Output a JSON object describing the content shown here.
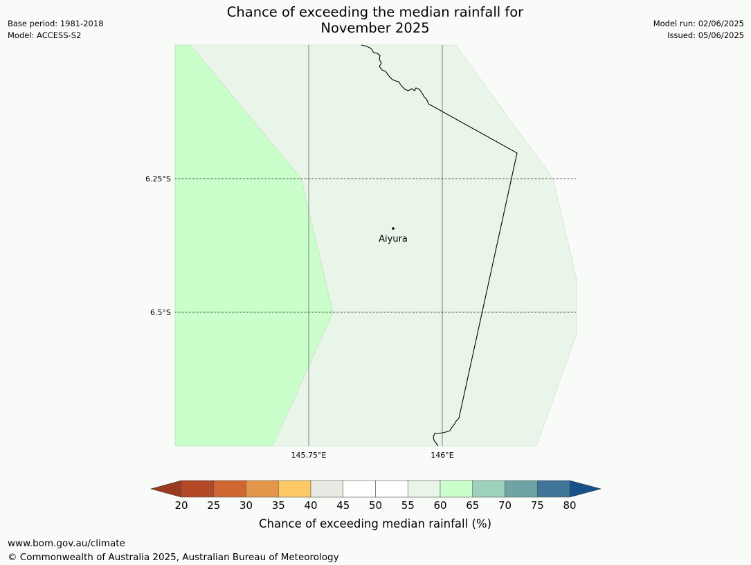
{
  "title": {
    "line1": "Chance of exceeding the median rainfall for",
    "line2": "November 2025"
  },
  "meta_left": {
    "base_period": "Base period: 1981-2018",
    "model": "Model: ACCESS-S2"
  },
  "meta_right": {
    "model_run": "Model run: 02/06/2025",
    "issued": "Issued: 05/06/2025"
  },
  "map": {
    "place_label": "Aiyura",
    "lat_labels": [
      "6.25°S",
      "6.5°S"
    ],
    "lon_labels": [
      "145.75°E",
      "146°E"
    ],
    "region_colors": {
      "band_60_65": "#caffcb",
      "band_55_60": "#eaf5ea"
    }
  },
  "colorbar": {
    "ticks": [
      "20",
      "25",
      "30",
      "35",
      "40",
      "45",
      "50",
      "55",
      "60",
      "65",
      "70",
      "75",
      "80"
    ],
    "colors": [
      "#b34926",
      "#d06631",
      "#e4974a",
      "#fdc965",
      "#eaeae5",
      "#ffffff",
      "#ffffff",
      "#eaf5ea",
      "#caffcb",
      "#9cd2bc",
      "#6da4a6",
      "#3e7599"
    ],
    "under_color": "#9a3a21",
    "over_color": "#16518a",
    "label": "Chance of exceeding median rainfall (%)"
  },
  "footer": {
    "url": "www.bom.gov.au/climate",
    "copyright": "© Commonwealth of Australia 2025, Australian Bureau of Meteorology"
  }
}
